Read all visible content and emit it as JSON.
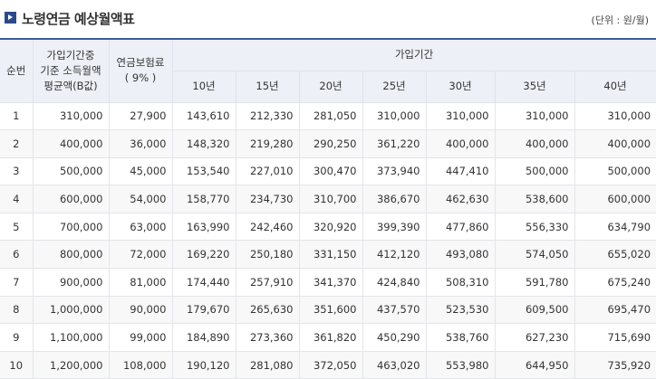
{
  "header": {
    "title": "노령연금 예상월액표",
    "unit": "(단위 : 원/월)"
  },
  "table": {
    "col_seq": "순번",
    "col_income_lines": [
      "가입기간중",
      "기준 소득월액",
      "평균액(B값)"
    ],
    "col_premium_lines": [
      "연금보험료",
      "( 9% )"
    ],
    "col_period_group": "가입기간",
    "periods": [
      "10년",
      "15년",
      "20년",
      "25년",
      "30년",
      "35년",
      "40년"
    ],
    "rows": [
      [
        "1",
        "310,000",
        "27,900",
        "143,610",
        "212,330",
        "281,050",
        "310,000",
        "310,000",
        "310,000",
        "310,000"
      ],
      [
        "2",
        "400,000",
        "36,000",
        "148,320",
        "219,280",
        "290,250",
        "361,220",
        "400,000",
        "400,000",
        "400,000"
      ],
      [
        "3",
        "500,000",
        "45,000",
        "153,540",
        "227,010",
        "300,470",
        "373,940",
        "447,410",
        "500,000",
        "500,000"
      ],
      [
        "4",
        "600,000",
        "54,000",
        "158,770",
        "234,730",
        "310,700",
        "386,670",
        "462,630",
        "538,600",
        "600,000"
      ],
      [
        "5",
        "700,000",
        "63,000",
        "163,990",
        "242,460",
        "320,920",
        "399,390",
        "477,860",
        "556,330",
        "634,790"
      ],
      [
        "6",
        "800,000",
        "72,000",
        "169,220",
        "250,180",
        "331,150",
        "412,120",
        "493,080",
        "574,050",
        "655,020"
      ],
      [
        "7",
        "900,000",
        "81,000",
        "174,440",
        "257,910",
        "341,370",
        "424,840",
        "508,310",
        "591,780",
        "675,240"
      ],
      [
        "8",
        "1,000,000",
        "90,000",
        "179,670",
        "265,630",
        "351,600",
        "437,570",
        "523,530",
        "609,500",
        "695,470"
      ],
      [
        "9",
        "1,100,000",
        "99,000",
        "184,890",
        "273,360",
        "361,820",
        "450,290",
        "538,760",
        "627,230",
        "715,690"
      ],
      [
        "10",
        "1,200,000",
        "108,000",
        "190,120",
        "281,080",
        "372,050",
        "463,020",
        "553,980",
        "644,950",
        "735,920"
      ]
    ]
  }
}
